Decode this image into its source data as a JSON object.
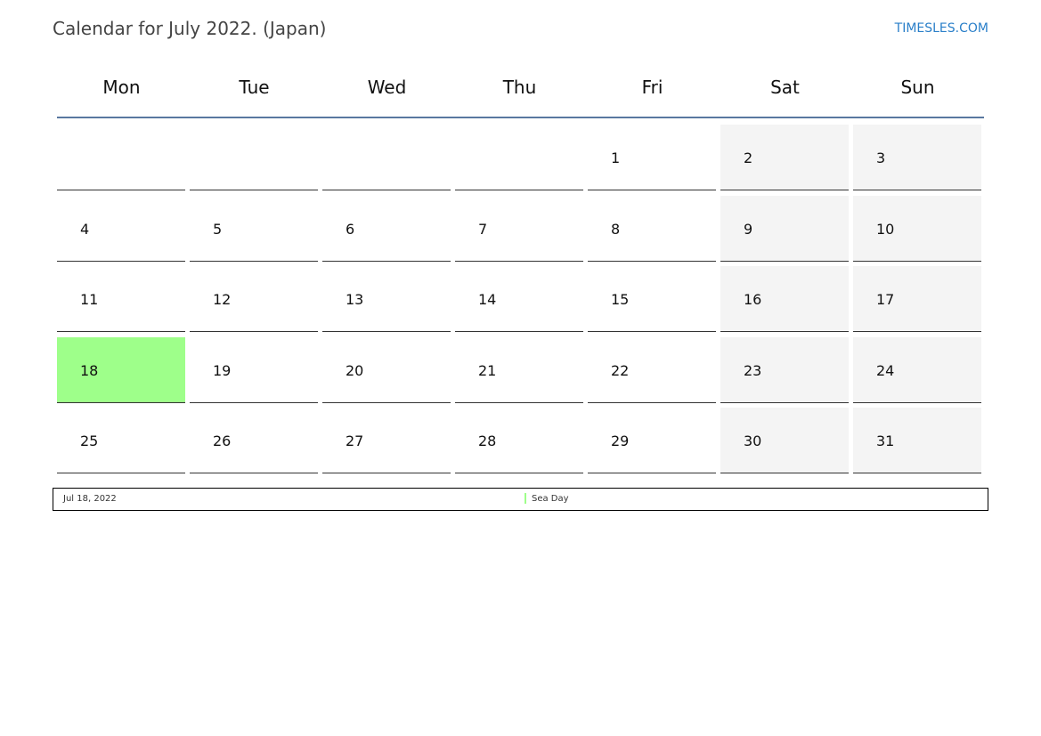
{
  "title": "Calendar for July 2022. (Japan)",
  "site": "TIMESLES.COM",
  "colors": {
    "holiday": "#9eff8a",
    "weekend": "#f4f4f4",
    "rule": "#5a78a0",
    "link": "#2a7fc9"
  },
  "weekdays": [
    "Mon",
    "Tue",
    "Wed",
    "Thu",
    "Fri",
    "Sat",
    "Sun"
  ],
  "weeks": [
    [
      "",
      "",
      "",
      "",
      "1",
      "2",
      "3"
    ],
    [
      "4",
      "5",
      "6",
      "7",
      "8",
      "9",
      "10"
    ],
    [
      "11",
      "12",
      "13",
      "14",
      "15",
      "16",
      "17"
    ],
    [
      "18",
      "19",
      "20",
      "21",
      "22",
      "23",
      "24"
    ],
    [
      "25",
      "26",
      "27",
      "28",
      "29",
      "30",
      "31"
    ]
  ],
  "holidays_highlighted": [
    "18"
  ],
  "legend": [
    {
      "date": "Jul 18, 2022",
      "name": "Sea Day"
    }
  ]
}
